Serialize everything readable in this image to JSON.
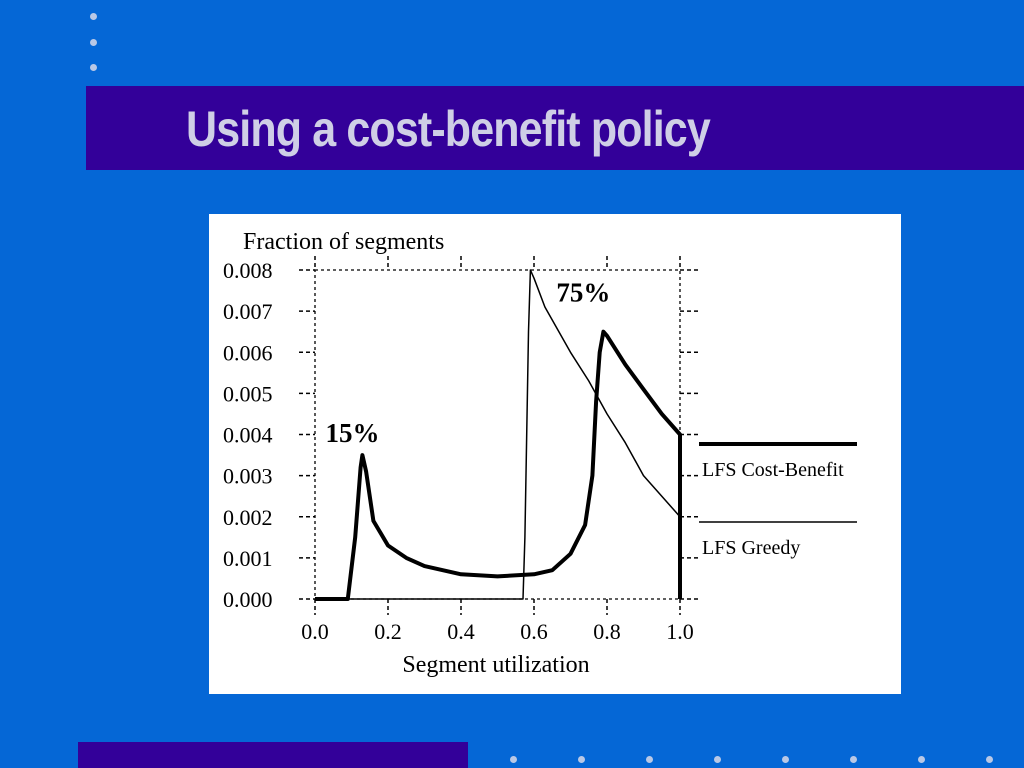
{
  "slide": {
    "title": "Using a cost-benefit policy"
  },
  "colors": {
    "background": "#0567d6",
    "band": "#330099",
    "title_text": "#cfcfe6",
    "dots": "#b9c8e6",
    "plot_ink": "#000000",
    "panel": "#ffffff"
  },
  "chart_data": {
    "type": "line",
    "title": "",
    "ylabel": "Fraction of segments",
    "xlabel": "Segment utilization",
    "xlim": [
      0.0,
      1.0
    ],
    "ylim": [
      0.0,
      0.008
    ],
    "x_ticks": [
      "0.0",
      "0.2",
      "0.4",
      "0.6",
      "0.8",
      "1.0"
    ],
    "y_ticks": [
      "0.000",
      "0.001",
      "0.002",
      "0.003",
      "0.004",
      "0.005",
      "0.006",
      "0.007",
      "0.008"
    ],
    "grid": "dotted",
    "legend_position": "right",
    "series": [
      {
        "name": "LFS Cost-Benefit",
        "line": "thick",
        "points": [
          [
            0.0,
            0.0
          ],
          [
            0.09,
            0.0
          ],
          [
            0.11,
            0.0015
          ],
          [
            0.125,
            0.0032
          ],
          [
            0.13,
            0.0035
          ],
          [
            0.14,
            0.0031
          ],
          [
            0.16,
            0.0019
          ],
          [
            0.2,
            0.0013
          ],
          [
            0.25,
            0.001
          ],
          [
            0.3,
            0.0008
          ],
          [
            0.4,
            0.0006
          ],
          [
            0.5,
            0.00055
          ],
          [
            0.6,
            0.0006
          ],
          [
            0.65,
            0.0007
          ],
          [
            0.7,
            0.0011
          ],
          [
            0.74,
            0.0018
          ],
          [
            0.76,
            0.003
          ],
          [
            0.77,
            0.0048
          ],
          [
            0.78,
            0.006
          ],
          [
            0.79,
            0.0065
          ],
          [
            0.8,
            0.0064
          ],
          [
            0.85,
            0.0057
          ],
          [
            0.9,
            0.0051
          ],
          [
            0.95,
            0.0045
          ],
          [
            1.0,
            0.004
          ],
          [
            1.0,
            0.0
          ]
        ]
      },
      {
        "name": "LFS Greedy",
        "line": "thin",
        "points": [
          [
            0.0,
            0.0
          ],
          [
            0.5,
            0.0
          ],
          [
            0.57,
            0.0
          ],
          [
            0.575,
            0.0015
          ],
          [
            0.585,
            0.0065
          ],
          [
            0.59,
            0.008
          ],
          [
            0.6,
            0.0078
          ],
          [
            0.63,
            0.0071
          ],
          [
            0.7,
            0.006
          ],
          [
            0.75,
            0.0053
          ],
          [
            0.8,
            0.0045
          ],
          [
            0.85,
            0.0038
          ],
          [
            0.9,
            0.003
          ],
          [
            0.95,
            0.0025
          ],
          [
            1.0,
            0.002
          ],
          [
            1.0,
            0.0
          ]
        ]
      }
    ],
    "annotations": [
      {
        "text": "15%",
        "x": 0.13,
        "y": 0.0035
      },
      {
        "text": "75%",
        "x": 0.79,
        "y": 0.0065
      }
    ]
  }
}
